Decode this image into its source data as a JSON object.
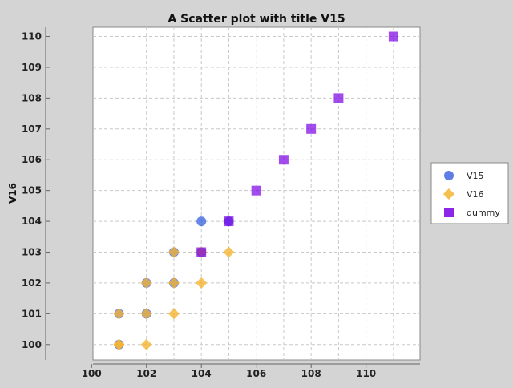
{
  "chart_data": {
    "type": "scatter",
    "title": "A Scatter plot with title V15",
    "xlabel": "",
    "ylabel": "V16",
    "xlim": [
      99.0,
      111.5
    ],
    "ylim": [
      99.5,
      110.3
    ],
    "x_ticks": [
      "100",
      "102",
      "104",
      "106",
      "108",
      "110"
    ],
    "y_ticks": [
      "100",
      "101",
      "102",
      "103",
      "104",
      "105",
      "106",
      "107",
      "108",
      "109",
      "110"
    ],
    "grid": true,
    "legend_position": "right",
    "series": [
      {
        "name": "V15",
        "marker": "circle",
        "color": "#4169e1",
        "points": [
          [
            103,
            103
          ],
          [
            104,
            104
          ],
          [
            104,
            103
          ],
          [
            102,
            102
          ],
          [
            101,
            101
          ],
          [
            103,
            102
          ],
          [
            102,
            101
          ],
          [
            101,
            100
          ],
          [
            105,
            104
          ]
        ]
      },
      {
        "name": "V16",
        "marker": "diamond",
        "color": "#f5b532",
        "points": [
          [
            101,
            100
          ],
          [
            102,
            100
          ],
          [
            101,
            101
          ],
          [
            102,
            101
          ],
          [
            103,
            101
          ],
          [
            102,
            102
          ],
          [
            103,
            102
          ],
          [
            104,
            102
          ],
          [
            104,
            103
          ],
          [
            105,
            103
          ],
          [
            103,
            103
          ],
          [
            101,
            100
          ]
        ]
      },
      {
        "name": "dummy",
        "marker": "square",
        "color": "#7a00e6",
        "points": [
          [
            104,
            103
          ],
          [
            105,
            104
          ],
          [
            106,
            105
          ],
          [
            107,
            106
          ],
          [
            108,
            107
          ],
          [
            109,
            108
          ],
          [
            111,
            110
          ]
        ]
      }
    ]
  }
}
